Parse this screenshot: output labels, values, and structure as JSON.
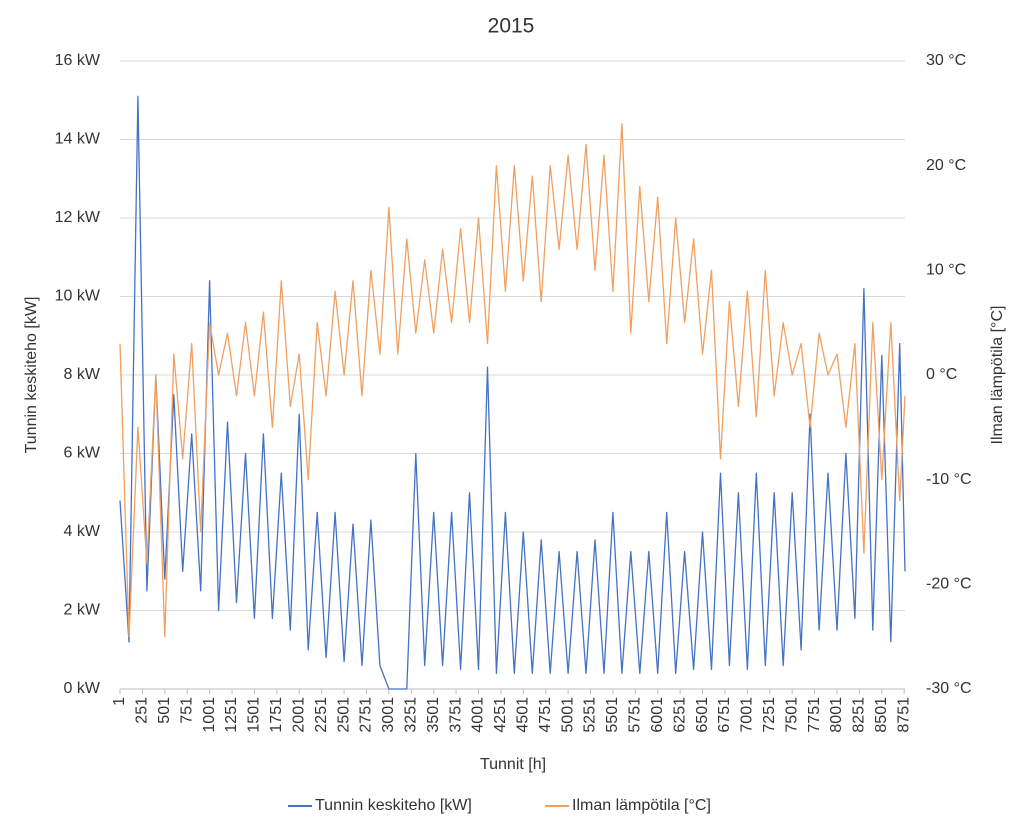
{
  "chart_data": {
    "type": "line",
    "title": "2015",
    "x_label": "Tunnit [h]",
    "y_label": "Tunnin keskiteho [kW]",
    "y2_label": "Ilman lämpötila [°C]",
    "x": [
      1,
      101,
      201,
      301,
      401,
      501,
      601,
      701,
      801,
      901,
      1001,
      1101,
      1201,
      1301,
      1401,
      1501,
      1601,
      1701,
      1801,
      1901,
      2001,
      2101,
      2201,
      2301,
      2401,
      2501,
      2601,
      2701,
      2801,
      2901,
      3001,
      3101,
      3201,
      3301,
      3401,
      3501,
      3601,
      3701,
      3801,
      3901,
      4001,
      4101,
      4201,
      4301,
      4401,
      4501,
      4601,
      4701,
      4801,
      4901,
      5001,
      5101,
      5201,
      5301,
      5401,
      5501,
      5601,
      5701,
      5801,
      5901,
      6001,
      6101,
      6201,
      6301,
      6401,
      6501,
      6601,
      6701,
      6801,
      6901,
      7001,
      7101,
      7201,
      7301,
      7401,
      7501,
      7601,
      7701,
      7801,
      7901,
      8001,
      8101,
      8201,
      8301,
      8401,
      8501,
      8601,
      8701,
      8760
    ],
    "series": [
      {
        "name": "Tunnin keskiteho [kW]",
        "color": "#4472c4",
        "values": [
          4.8,
          1.2,
          15.1,
          2.5,
          8.0,
          2.8,
          7.5,
          3.0,
          6.5,
          2.5,
          10.4,
          2.0,
          6.8,
          2.2,
          6.0,
          1.8,
          6.5,
          1.8,
          5.5,
          1.5,
          7.0,
          1.0,
          4.5,
          0.8,
          4.5,
          0.7,
          4.2,
          0.6,
          4.3,
          0.6,
          0,
          0,
          0,
          6.0,
          0.6,
          4.5,
          0.6,
          4.5,
          0.5,
          5.0,
          0.5,
          8.2,
          0.4,
          4.5,
          0.4,
          4.0,
          0.4,
          3.8,
          0.4,
          3.5,
          0.4,
          3.5,
          0.4,
          3.8,
          0.4,
          4.5,
          0.4,
          3.5,
          0.4,
          3.5,
          0.4,
          4.5,
          0.4,
          3.5,
          0.5,
          4.0,
          0.5,
          5.5,
          0.6,
          5.0,
          0.5,
          5.5,
          0.6,
          5.0,
          0.6,
          5.0,
          1.0,
          7.0,
          1.5,
          5.5,
          1.5,
          6.0,
          1.8,
          10.2,
          1.5,
          8.5,
          1.2,
          8.8,
          3.0
        ]
      },
      {
        "name": "Ilman lämpötila [°C]",
        "color": "#f0a060",
        "axis": "y2",
        "values": [
          3,
          -25,
          -5,
          -18,
          0,
          -25,
          2,
          -8,
          3,
          -15,
          5,
          0,
          4,
          -2,
          5,
          -2,
          6,
          -5,
          9,
          -3,
          2,
          -10,
          5,
          -2,
          8,
          0,
          9,
          -2,
          10,
          2,
          16,
          2,
          13,
          4,
          11,
          4,
          12,
          5,
          14,
          5,
          15,
          3,
          20,
          8,
          20,
          9,
          19,
          7,
          20,
          12,
          21,
          12,
          22,
          10,
          21,
          8,
          24,
          4,
          18,
          7,
          17,
          3,
          15,
          5,
          13,
          2,
          10,
          -8,
          7,
          -3,
          8,
          -4,
          10,
          -2,
          5,
          0,
          3,
          -5,
          4,
          0,
          2,
          -5,
          3,
          -17,
          5,
          -10,
          5,
          -12,
          -2
        ]
      }
    ],
    "xlim": [
      1,
      8760
    ],
    "xticks": [
      1,
      251,
      501,
      751,
      1001,
      1251,
      1501,
      1751,
      2001,
      2251,
      2501,
      2751,
      3001,
      3251,
      3501,
      3751,
      4001,
      4251,
      4501,
      4751,
      5001,
      5251,
      5501,
      5751,
      6001,
      6251,
      6501,
      6751,
      7001,
      7251,
      7501,
      7751,
      8001,
      8251,
      8501,
      8751
    ],
    "ylim": [
      0,
      16
    ],
    "yticks": [
      {
        "value": 0,
        "label": "0 kW"
      },
      {
        "value": 2,
        "label": "2 kW"
      },
      {
        "value": 4,
        "label": "4 kW"
      },
      {
        "value": 6,
        "label": "6 kW"
      },
      {
        "value": 8,
        "label": "8 kW"
      },
      {
        "value": 10,
        "label": "10 kW"
      },
      {
        "value": 12,
        "label": "12 kW"
      },
      {
        "value": 14,
        "label": "14 kW"
      },
      {
        "value": 16,
        "label": "16 kW"
      }
    ],
    "y2lim": [
      -30,
      30
    ],
    "y2ticks": [
      {
        "value": -30,
        "label": "-30 °C"
      },
      {
        "value": -20,
        "label": "-20 °C"
      },
      {
        "value": -10,
        "label": "-10 °C"
      },
      {
        "value": 0,
        "label": "0 °C"
      },
      {
        "value": 10,
        "label": "10 °C"
      },
      {
        "value": 20,
        "label": "20 °C"
      },
      {
        "value": 30,
        "label": "30 °C"
      }
    ],
    "grid": true,
    "legend": "bottom"
  }
}
